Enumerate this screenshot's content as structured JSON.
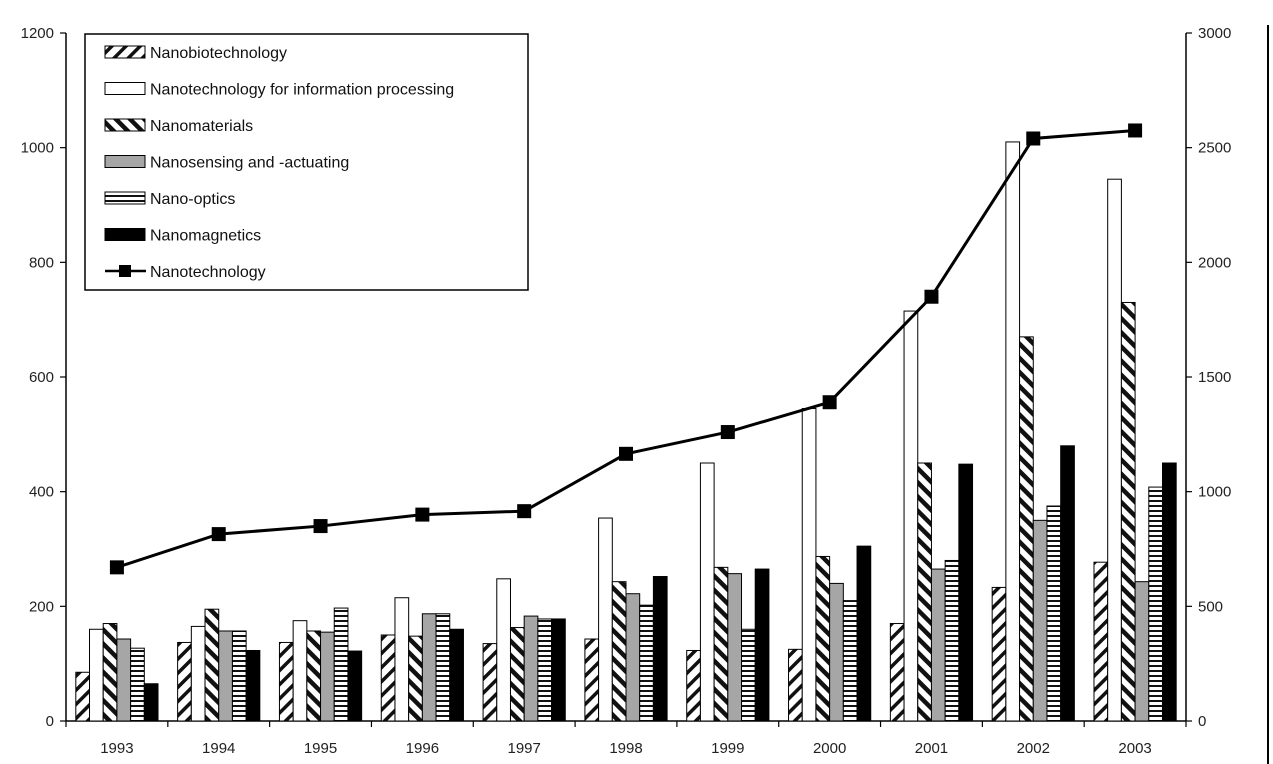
{
  "chart_data": {
    "type": "bar",
    "categories": [
      "1993",
      "1994",
      "1995",
      "1996",
      "1997",
      "1998",
      "1999",
      "2000",
      "2001",
      "2002",
      "2003"
    ],
    "y_left": {
      "ylim": [
        0,
        1200
      ],
      "ticks": [
        "0",
        "200",
        "400",
        "600",
        "800",
        "1000",
        "1200"
      ]
    },
    "y_right": {
      "ylim": [
        0,
        3000
      ],
      "ticks": [
        "0",
        "500",
        "1000",
        "1500",
        "2000",
        "2500",
        "3000"
      ]
    },
    "legend_position": "top-left",
    "series": [
      {
        "name": "Nanobiotechnology",
        "pattern": "diag-light",
        "axis": "left",
        "values": [
          85,
          137,
          137,
          150,
          135,
          143,
          123,
          125,
          170,
          233,
          277
        ]
      },
      {
        "name": "Nanotechnology for information processing",
        "pattern": "white",
        "axis": "left",
        "values": [
          160,
          165,
          175,
          215,
          248,
          354,
          450,
          545,
          715,
          1010,
          945
        ]
      },
      {
        "name": "Nanomaterials",
        "pattern": "diag-heavy",
        "axis": "left",
        "values": [
          170,
          195,
          157,
          148,
          163,
          243,
          268,
          287,
          450,
          670,
          730
        ]
      },
      {
        "name": "Nanosensing and -actuating",
        "pattern": "gray",
        "axis": "left",
        "values": [
          143,
          157,
          155,
          187,
          183,
          222,
          257,
          240,
          265,
          350,
          243
        ]
      },
      {
        "name": "Nano-optics",
        "pattern": "horizontal",
        "axis": "left",
        "values": [
          127,
          157,
          197,
          187,
          178,
          202,
          160,
          210,
          280,
          375,
          408
        ]
      },
      {
        "name": "Nanomagnetics",
        "pattern": "black",
        "axis": "left",
        "values": [
          65,
          123,
          122,
          160,
          178,
          252,
          265,
          305,
          448,
          480,
          450
        ]
      },
      {
        "name": "Nanotechnology",
        "type": "line",
        "axis": "right",
        "values": [
          670,
          815,
          850,
          900,
          915,
          1165,
          1260,
          1390,
          1850,
          2540,
          2575
        ]
      }
    ]
  }
}
